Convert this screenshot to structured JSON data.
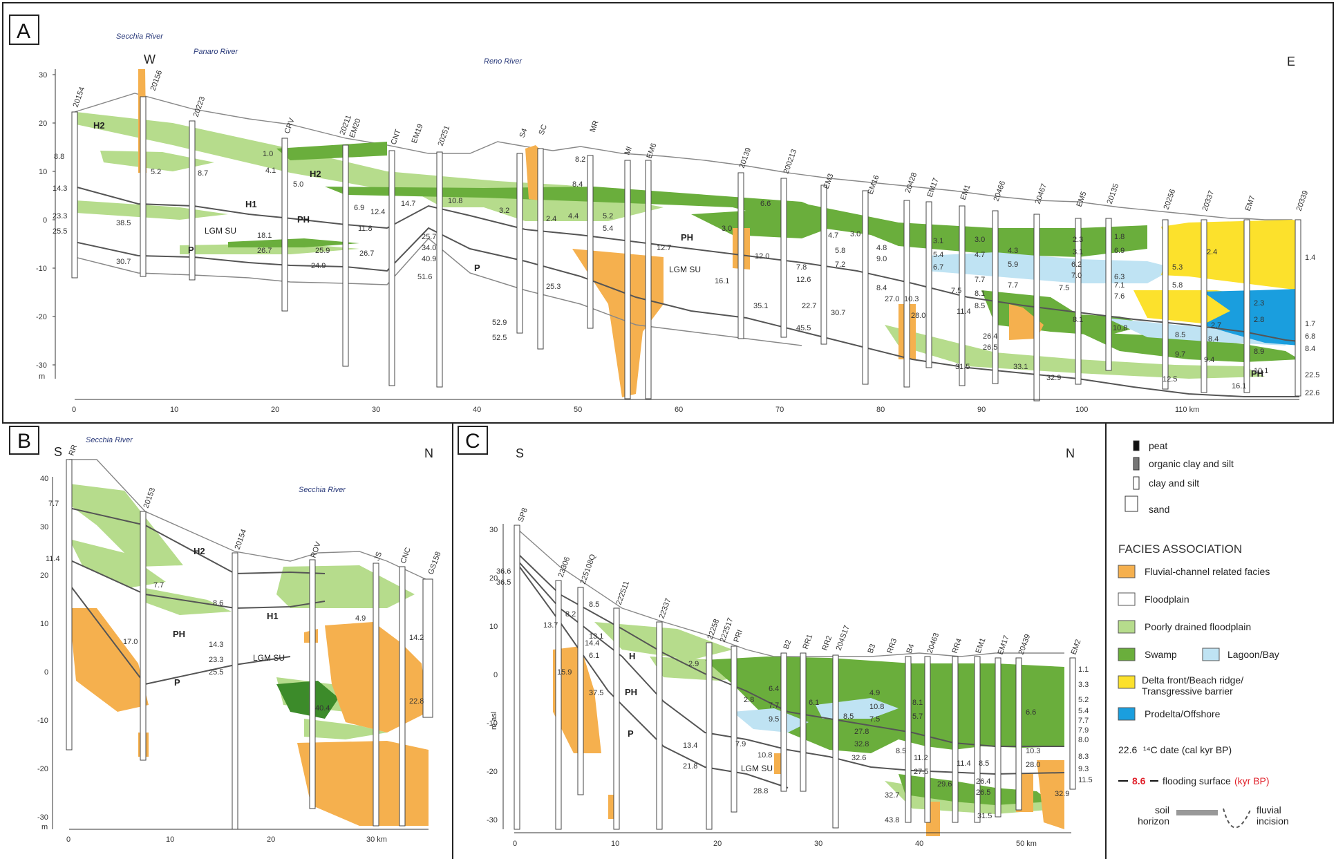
{
  "panels": {
    "a": {
      "label": "A",
      "dir_left": "W",
      "dir_right": "E",
      "y_ticks": [
        "30",
        "20",
        "10",
        "0",
        "-10",
        "-20",
        "-30"
      ],
      "y_unit": "m",
      "x_ticks": [
        "0",
        "10",
        "20",
        "30",
        "40",
        "50",
        "60",
        "70",
        "80",
        "90",
        "100",
        "110 km"
      ],
      "rivers": [
        {
          "name": "Secchia River"
        },
        {
          "name": "Panaro River"
        },
        {
          "name": "Reno River"
        }
      ],
      "units": [
        "H2",
        "H1",
        "PH",
        "P",
        "LGM SU",
        "H2",
        "PH",
        "LGM SU",
        "P",
        "PH"
      ],
      "boreholes": [
        "20154",
        "20156",
        "20223",
        "CRV",
        "20211",
        "EM20",
        "CNT",
        "EM19",
        "20251",
        "S4",
        "SC",
        "MR",
        "MI",
        "EM6",
        "20139",
        "200213",
        "EM3",
        "EM16",
        "20428",
        "EM17",
        "EM1",
        "20466",
        "20467",
        "EM5",
        "20135",
        "20256",
        "20337",
        "EM7",
        "20339"
      ],
      "dates": [
        "8.8",
        "14.3",
        "23.3",
        "25.5",
        "30.7",
        "38.5",
        "5.2",
        "8.7",
        "1.0",
        "4.1",
        "5.0",
        "18.1",
        "26.7",
        "25.9",
        "24.9",
        "26.7",
        "6.9",
        "12.4",
        "14.7",
        "10.8",
        "11.8",
        "25.7",
        "34.0",
        "40.9",
        "51.6",
        "52.9",
        "52.5",
        "25.3",
        "3.2",
        "2.4",
        "4.4",
        "5.2",
        "5.4",
        "8.2",
        "8.4",
        "12.7",
        "16.1",
        "12.0",
        "35.1",
        "3.0",
        "6.6",
        "7.8",
        "12.6",
        "22.7",
        "30.7",
        "45.5",
        "4.7",
        "3.0",
        "5.8",
        "7.2",
        "4.8",
        "9.0",
        "8.4",
        "27.0",
        "10.3",
        "28.0",
        "3.1",
        "5.4",
        "6.7",
        "7.5",
        "11.4",
        "3.0",
        "4.7",
        "7.7",
        "8.1",
        "8.5",
        "4.3",
        "5.9",
        "7.7",
        "26.4",
        "26.5",
        "31.5",
        "33.1",
        "32.9",
        "2.3",
        "3.1",
        "6.2",
        "7.0",
        "7.5",
        "8.1",
        "10.8",
        "1.8",
        "6.9",
        "6.3",
        "7.1",
        "7.6",
        "5.3",
        "5.8",
        "8.5",
        "9.7",
        "12.5",
        "2.4",
        "2.3",
        "2.8",
        "2.7",
        "8.4",
        "8.9",
        "10.1",
        "16.1",
        "1.4",
        "1.7",
        "6.8",
        "8.4",
        "22.5",
        "22.6",
        "9.4"
      ]
    },
    "b": {
      "label": "B",
      "dir_left": "S",
      "dir_right": "N",
      "y_ticks": [
        "40",
        "30",
        "20",
        "10",
        "0",
        "-10",
        "-20",
        "-30"
      ],
      "y_unit": "m",
      "x_ticks": [
        "0",
        "10",
        "20",
        "30 km"
      ],
      "rivers": [
        {
          "name": "Secchia River"
        },
        {
          "name": "Secchia River"
        }
      ],
      "units": [
        "H2",
        "H1",
        "PH",
        "LGM SU",
        "P"
      ],
      "boreholes": [
        "RR",
        "20153",
        "20154",
        "ROV",
        "JS",
        "CNC",
        "GS158"
      ],
      "dates": [
        "7.7",
        "11.4",
        "7.7",
        "8.6",
        "17.0",
        "14.3",
        "23.3",
        "25.5",
        "4.9",
        "14.2",
        "40.4",
        "22.8"
      ]
    },
    "c": {
      "label": "C",
      "dir_left": "S",
      "dir_right": "N",
      "y_ticks": [
        "30",
        "20",
        "10",
        "0",
        "-10",
        "-20",
        "-30"
      ],
      "y_unit": "m asl",
      "x_ticks": [
        "0",
        "10",
        "20",
        "30",
        "40",
        "50 km"
      ],
      "units": [
        "H",
        "PH",
        "P",
        "LGM SU"
      ],
      "boreholes": [
        "SP8",
        "23306",
        "225108Q",
        "222511",
        "22337",
        "22258",
        "222517",
        "PRI",
        "B2",
        "RR1",
        "RR2",
        "204S17",
        "B3",
        "RR3",
        "B4",
        "20463",
        "RR4",
        "EM1",
        "EM17",
        "20439",
        "EM2"
      ],
      "dates": [
        "36.6",
        "36.5",
        "13.7",
        "14.4",
        "8.2",
        "8.5",
        "13.1",
        "6.1",
        "37.5",
        "15.9",
        "2.9",
        "13.4",
        "21.8",
        "2.8",
        "6.4",
        "7.7",
        "9.5",
        "7.9",
        "10.8",
        "28.8",
        "6.1",
        "8.5",
        "27.8",
        "32.8",
        "32.6",
        "10.8",
        "4.9",
        "7.5",
        "8.5",
        "11.2",
        "27.5",
        "32.7",
        "43.8",
        "8.1",
        "5.7",
        "29.6",
        "11.4",
        "8.5",
        "26.4",
        "26.5",
        "31.5",
        "10.3",
        "28.0",
        "6.6",
        "1.1",
        "3.3",
        "5.2",
        "5.4",
        "7.7",
        "7.9",
        "8.0",
        "8.3",
        "9.3",
        "11.5",
        "32.9"
      ]
    }
  },
  "legend": {
    "lithology": [
      {
        "label": "peat",
        "color": "#111111"
      },
      {
        "label": "organic clay and silt",
        "color": "#777777"
      },
      {
        "label": "clay and silt",
        "color": "#ffffff"
      },
      {
        "label": "sand",
        "color": "#ffffff"
      }
    ],
    "facies_title": "FACIES ASSOCIATION",
    "facies": [
      {
        "label": "Fluvial-channel related facies",
        "color": "#f5b04e"
      },
      {
        "label": "Floodplain",
        "color": "#ffffff"
      },
      {
        "label": "Poorly drained floodplain",
        "color": "#b6dc8c"
      },
      {
        "label": "Swamp",
        "color": "#6aae3c"
      },
      {
        "label": "Lagoon/Bay",
        "color": "#bfe3f3"
      },
      {
        "label": "Delta front/Beach ridge/ Transgressive barrier",
        "color": "#fce12c"
      },
      {
        "label": "Prodelta/Offshore",
        "color": "#1a9ede"
      }
    ],
    "date_value": "22.6",
    "date_label": "¹⁴C date (cal kyr BP)",
    "flood_value": "8.6",
    "flood_label": "flooding surface",
    "flood_unit": "(kyr BP)",
    "soil_label": "soil horizon",
    "incision_label": "fluvial incision"
  }
}
